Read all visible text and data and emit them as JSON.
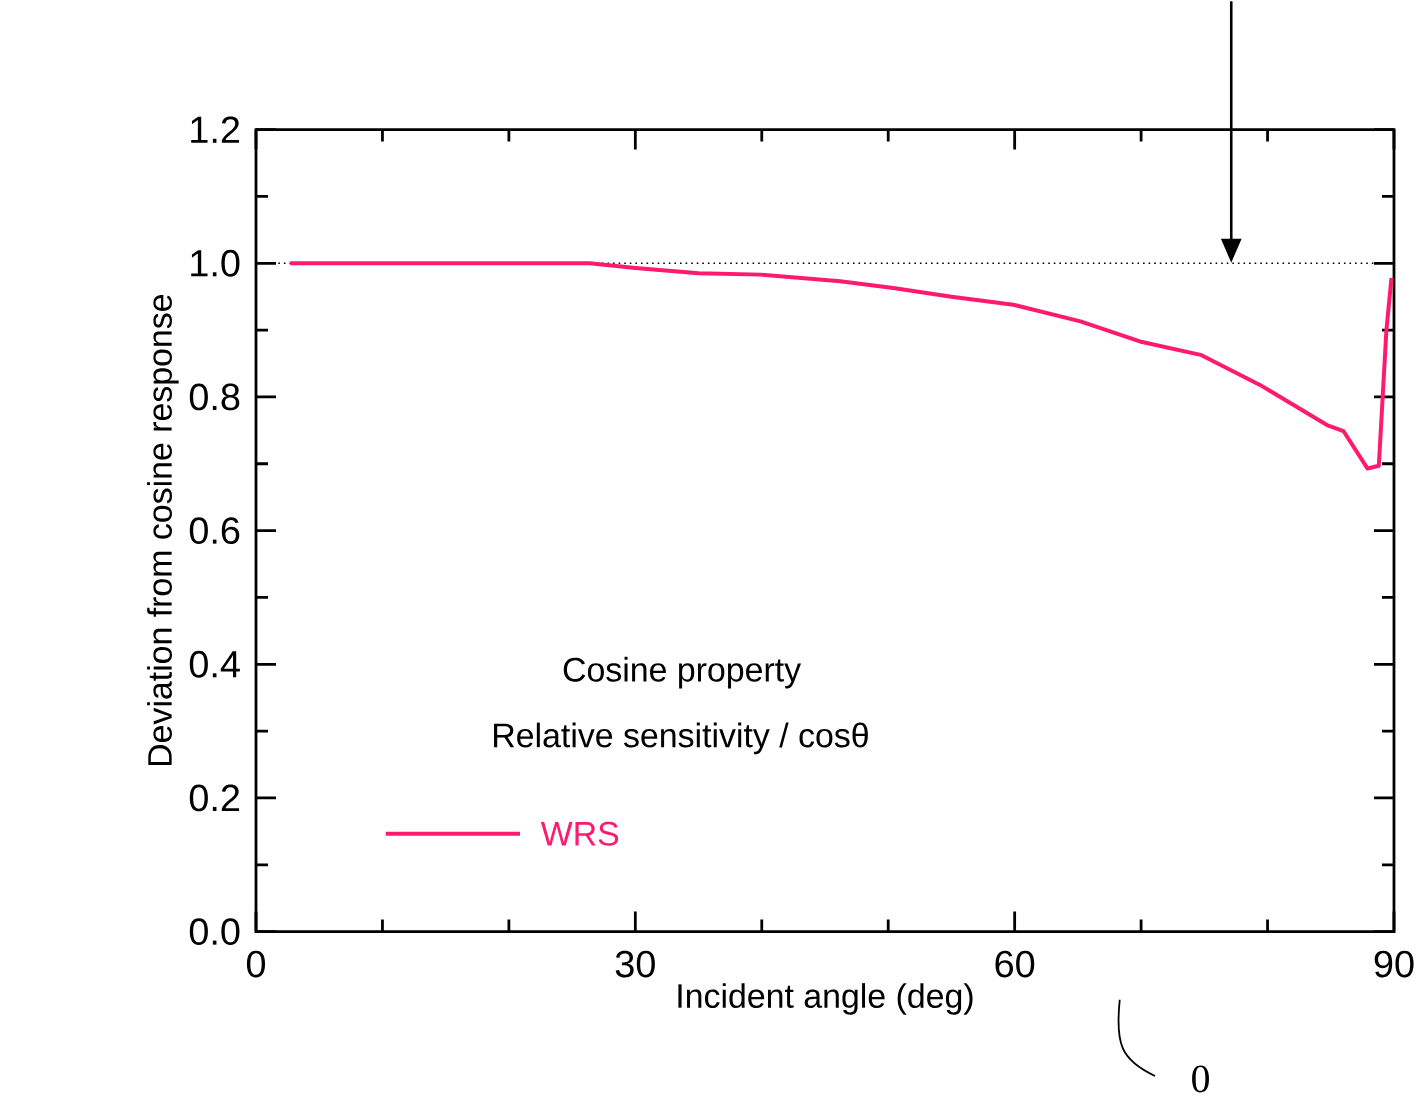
{
  "chart_data": {
    "type": "line",
    "xlabel": "Incident angle (deg)",
    "ylabel": "Deviation from cosine response",
    "legend_title": "Cosine property",
    "annotations": [
      "Relative sensitivity / cosθ",
      "0"
    ],
    "xlim": [
      0,
      90
    ],
    "ylim": [
      0,
      1.2
    ],
    "xticks": [
      0,
      30,
      60,
      90
    ],
    "yticks": [
      {
        "value": 0,
        "label": "0.0"
      },
      0.2,
      0.4,
      0.6,
      0.8,
      {
        "value": 1,
        "label": "1.0"
      },
      1.2
    ],
    "legend": "bottom left",
    "line_style": "solid",
    "ref_lines": [
      {
        "axis": "y",
        "value": 1.0,
        "line_style": "dotted",
        "color": "#000000"
      }
    ],
    "series": [
      {
        "name": "WRS",
        "color": "#ff1a6e",
        "x": [
          2.7,
          10,
          20,
          26.4,
          30,
          35,
          39.9,
          46.2,
          50.4,
          55,
          59.9,
          65.2,
          69.9,
          74.7,
          79.4,
          84.7,
          86.0,
          87.9,
          88.8,
          89.4,
          89.8
        ],
        "values": [
          1.0,
          1.0,
          1.0,
          1.0,
          0.993,
          0.985,
          0.983,
          0.973,
          0.963,
          0.95,
          0.938,
          0.913,
          0.883,
          0.863,
          0.818,
          0.758,
          0.749,
          0.693,
          0.697,
          0.9,
          0.978
        ]
      }
    ]
  }
}
